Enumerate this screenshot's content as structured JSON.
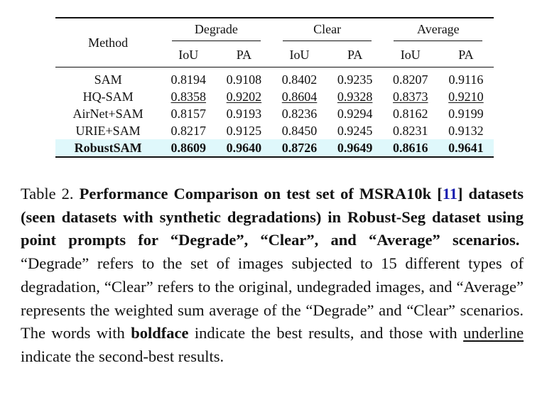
{
  "table": {
    "method_label": "Method",
    "groups": [
      "Degrade",
      "Clear",
      "Average"
    ],
    "metrics": [
      "IoU",
      "PA",
      "IoU",
      "PA",
      "IoU",
      "PA"
    ],
    "rows": [
      {
        "method": "SAM",
        "values": [
          "0.8194",
          "0.9108",
          "0.8402",
          "0.9235",
          "0.8207",
          "0.9116"
        ],
        "underline": [
          false,
          false,
          false,
          false,
          false,
          false
        ],
        "best": false
      },
      {
        "method": "HQ-SAM",
        "values": [
          "0.8358",
          "0.9202",
          "0.8604",
          "0.9328",
          "0.8373",
          "0.9210"
        ],
        "underline": [
          true,
          true,
          true,
          true,
          true,
          true
        ],
        "best": false
      },
      {
        "method": "AirNet+SAM",
        "values": [
          "0.8157",
          "0.9193",
          "0.8236",
          "0.9294",
          "0.8162",
          "0.9199"
        ],
        "underline": [
          false,
          false,
          false,
          false,
          false,
          false
        ],
        "best": false
      },
      {
        "method": "URIE+SAM",
        "values": [
          "0.8217",
          "0.9125",
          "0.8450",
          "0.9245",
          "0.8231",
          "0.9132"
        ],
        "underline": [
          false,
          false,
          false,
          false,
          false,
          false
        ],
        "best": false
      },
      {
        "method": "RobustSAM",
        "values": [
          "0.8609",
          "0.9640",
          "0.8726",
          "0.9649",
          "0.8616",
          "0.9641"
        ],
        "underline": [
          false,
          false,
          false,
          false,
          false,
          false
        ],
        "best": true
      }
    ],
    "highlight_color": "#dff8fb"
  },
  "caption": {
    "label": "Table 2.",
    "bold_part1": "Performance Comparison on test set of MSRA10k [",
    "cite": "11",
    "bold_part2": "] datasets (seen datasets with synthetic degradations) in Robust-Seg dataset using point prompts for “Degrade”, “Clear”, and “Average” scenarios.",
    "body1": "“Degrade” refers to the set of images subjected to 15 different types of degradation, “Clear” refers to the original, undegraded images, and “Average” represents the weighted sum average of the “Degrade” and “Clear” scenarios. The words with",
    "boldface_word": "boldface",
    "body2": "indicate the best results, and those with",
    "underline_word": "underline",
    "body3": "indicate the second-best results.",
    "cite_color": "#1a1fb0"
  }
}
